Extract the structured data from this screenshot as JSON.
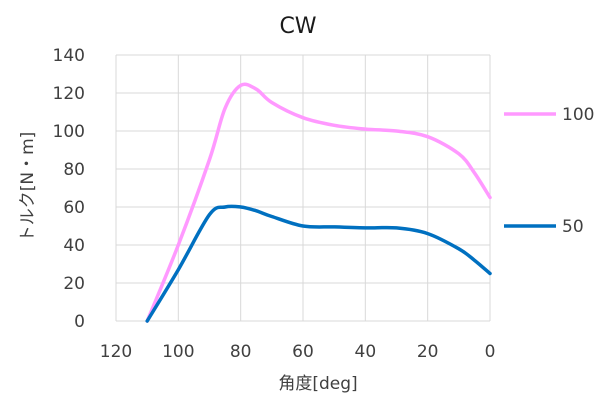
{
  "chart_data": {
    "type": "line",
    "title": "CW",
    "xlabel": "角度[deg]",
    "ylabel": "トルク[N・m]",
    "x_reversed": true,
    "xlim": [
      0,
      120
    ],
    "ylim": [
      0,
      140
    ],
    "xticks": [
      120,
      100,
      80,
      60,
      40,
      20,
      0
    ],
    "yticks": [
      0,
      20,
      40,
      60,
      80,
      100,
      120,
      140
    ],
    "grid": true,
    "legend_position": "right",
    "series": [
      {
        "name": "100",
        "color": "#ff99ff",
        "x": [
          110,
          100,
          90,
          85,
          80,
          75,
          70,
          60,
          50,
          40,
          30,
          20,
          10,
          5,
          0
        ],
        "y": [
          0,
          40,
          85,
          112,
          124,
          122,
          115,
          107,
          103,
          101,
          100,
          97,
          88,
          78,
          65
        ]
      },
      {
        "name": "50",
        "color": "#0070c0",
        "x": [
          110,
          100,
          90,
          85,
          80,
          75,
          70,
          60,
          50,
          40,
          30,
          20,
          10,
          5,
          0
        ],
        "y": [
          0,
          27,
          56,
          60,
          60,
          58,
          55,
          50,
          49.5,
          49,
          49,
          46,
          38,
          32,
          25
        ]
      }
    ]
  }
}
